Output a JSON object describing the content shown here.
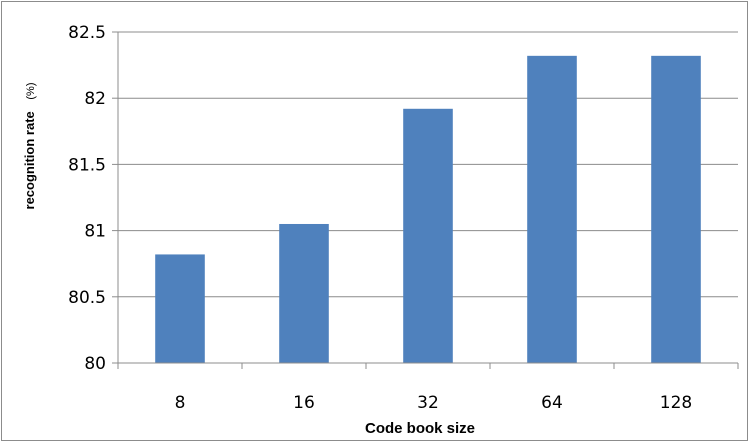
{
  "chart_data": {
    "type": "bar",
    "categories": [
      "8",
      "16",
      "32",
      "64",
      "128"
    ],
    "values": [
      80.82,
      81.05,
      81.92,
      82.32,
      82.32
    ],
    "xlabel": "Code book size",
    "ylabel_main": "recognition rate",
    "ylabel_unit": "(%)",
    "ylim": [
      80,
      82.5
    ],
    "yticks": [
      "80",
      "80.5",
      "81",
      "81.5",
      "82",
      "82.5"
    ],
    "grid": true,
    "legend": "none",
    "bar_color": "#4f81bd"
  }
}
